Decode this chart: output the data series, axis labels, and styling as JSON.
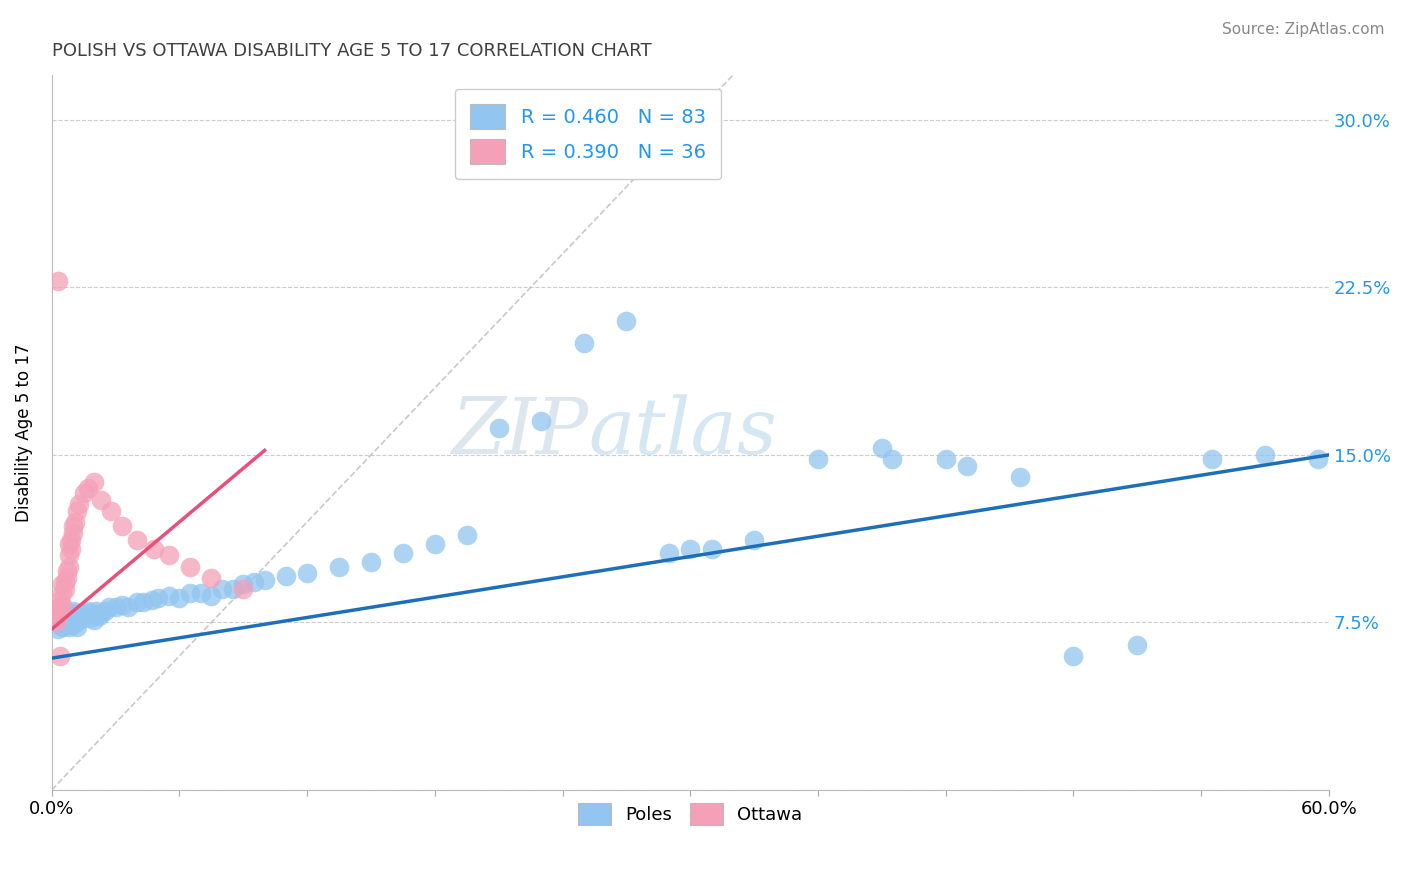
{
  "title": "POLISH VS OTTAWA DISABILITY AGE 5 TO 17 CORRELATION CHART",
  "source": "Source: ZipAtlas.com",
  "ylabel": "Disability Age 5 to 17",
  "xlim": [
    0.0,
    0.6
  ],
  "ylim": [
    0.0,
    0.32
  ],
  "xticks": [
    0.0,
    0.06,
    0.12,
    0.18,
    0.24,
    0.3,
    0.36,
    0.42,
    0.48,
    0.54,
    0.6
  ],
  "yticks": [
    0.0,
    0.075,
    0.15,
    0.225,
    0.3
  ],
  "ytick_labels_right": [
    "",
    "7.5%",
    "15.0%",
    "22.5%",
    "30.0%"
  ],
  "blue_R": 0.46,
  "blue_N": 83,
  "pink_R": 0.39,
  "pink_N": 36,
  "blue_color": "#92C5F0",
  "pink_color": "#F4A0B8",
  "blue_line_color": "#1E6FBA",
  "pink_line_color": "#E8507A",
  "diag_color": "#C8B8C8",
  "watermark_color": "#C8DCF0",
  "background_color": "#FFFFFF",
  "grid_color": "#CCCCCC",
  "blue_line_x": [
    0.0,
    0.6
  ],
  "blue_line_y": [
    0.059,
    0.15
  ],
  "pink_line_x": [
    0.0,
    0.1
  ],
  "pink_line_y": [
    0.072,
    0.152
  ],
  "blue_points_x": [
    0.002,
    0.003,
    0.003,
    0.004,
    0.004,
    0.005,
    0.005,
    0.005,
    0.006,
    0.006,
    0.006,
    0.007,
    0.007,
    0.007,
    0.008,
    0.008,
    0.008,
    0.009,
    0.009,
    0.01,
    0.01,
    0.01,
    0.011,
    0.011,
    0.012,
    0.012,
    0.013,
    0.013,
    0.014,
    0.015,
    0.016,
    0.017,
    0.018,
    0.019,
    0.02,
    0.021,
    0.022,
    0.023,
    0.025,
    0.027,
    0.03,
    0.033,
    0.036,
    0.04,
    0.043,
    0.047,
    0.05,
    0.055,
    0.06,
    0.065,
    0.07,
    0.075,
    0.08,
    0.085,
    0.09,
    0.095,
    0.1,
    0.11,
    0.12,
    0.135,
    0.15,
    0.165,
    0.18,
    0.195,
    0.21,
    0.23,
    0.25,
    0.27,
    0.3,
    0.33,
    0.36,
    0.39,
    0.42,
    0.455,
    0.48,
    0.51,
    0.545,
    0.57,
    0.29,
    0.31,
    0.395,
    0.43,
    0.595
  ],
  "blue_points_y": [
    0.075,
    0.078,
    0.072,
    0.08,
    0.074,
    0.076,
    0.079,
    0.073,
    0.077,
    0.075,
    0.08,
    0.074,
    0.078,
    0.076,
    0.079,
    0.073,
    0.077,
    0.075,
    0.079,
    0.076,
    0.08,
    0.074,
    0.077,
    0.075,
    0.078,
    0.073,
    0.079,
    0.076,
    0.077,
    0.078,
    0.079,
    0.08,
    0.077,
    0.079,
    0.076,
    0.08,
    0.078,
    0.079,
    0.08,
    0.082,
    0.082,
    0.083,
    0.082,
    0.084,
    0.084,
    0.085,
    0.086,
    0.087,
    0.086,
    0.088,
    0.088,
    0.087,
    0.09,
    0.09,
    0.092,
    0.093,
    0.094,
    0.096,
    0.097,
    0.1,
    0.102,
    0.106,
    0.11,
    0.114,
    0.162,
    0.165,
    0.2,
    0.21,
    0.108,
    0.112,
    0.148,
    0.153,
    0.148,
    0.14,
    0.06,
    0.065,
    0.148,
    0.15,
    0.106,
    0.108,
    0.148,
    0.145,
    0.148
  ],
  "pink_points_x": [
    0.002,
    0.003,
    0.003,
    0.004,
    0.004,
    0.005,
    0.005,
    0.005,
    0.006,
    0.006,
    0.007,
    0.007,
    0.008,
    0.008,
    0.008,
    0.009,
    0.009,
    0.01,
    0.01,
    0.011,
    0.012,
    0.013,
    0.015,
    0.017,
    0.02,
    0.023,
    0.028,
    0.033,
    0.04,
    0.048,
    0.055,
    0.065,
    0.075,
    0.09,
    0.003,
    0.004
  ],
  "pink_points_y": [
    0.075,
    0.078,
    0.082,
    0.08,
    0.085,
    0.083,
    0.088,
    0.092,
    0.09,
    0.093,
    0.095,
    0.098,
    0.1,
    0.105,
    0.11,
    0.112,
    0.108,
    0.115,
    0.118,
    0.12,
    0.125,
    0.128,
    0.133,
    0.135,
    0.138,
    0.13,
    0.125,
    0.118,
    0.112,
    0.108,
    0.105,
    0.1,
    0.095,
    0.09,
    0.228,
    0.06
  ]
}
